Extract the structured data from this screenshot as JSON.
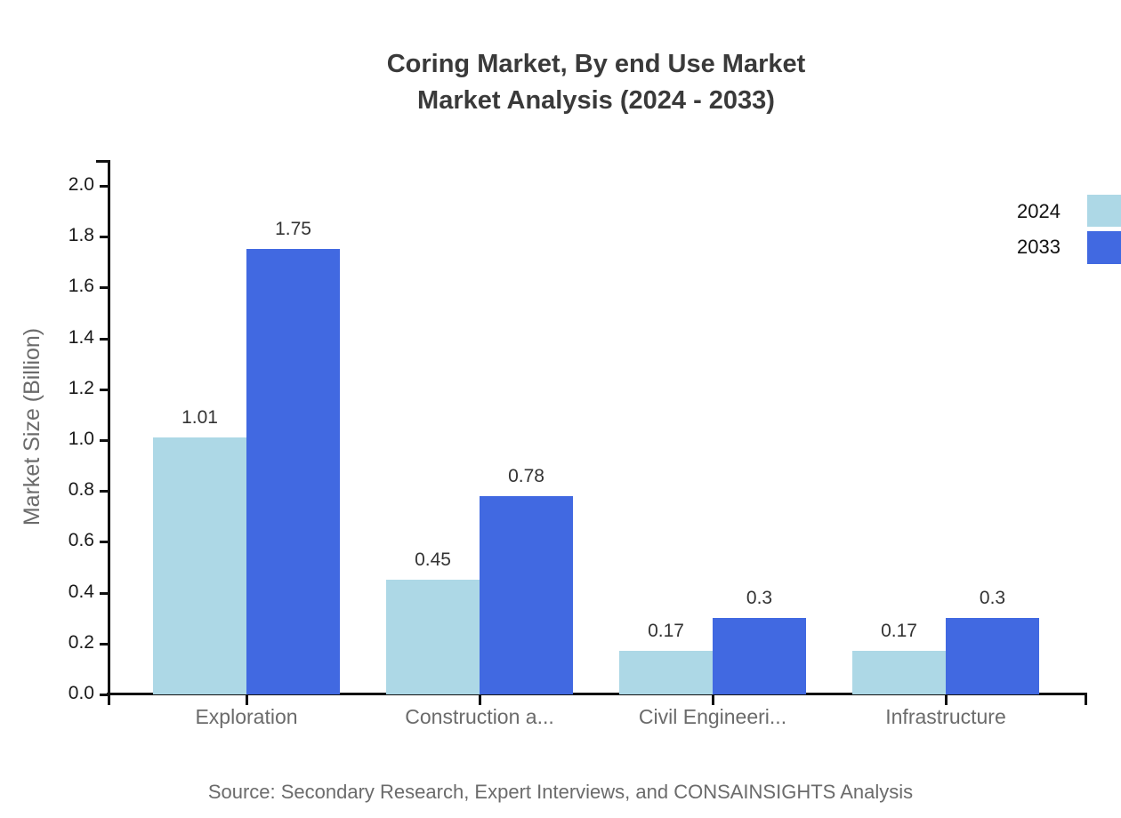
{
  "title": {
    "line1": "Coring Market, By end Use Market",
    "line2": "Market Analysis (2024 - 2033)"
  },
  "source": "Source: Secondary Research, Expert Interviews, and CONSAINSIGHTS Analysis",
  "colors": {
    "series_2024": "#ADD8E6",
    "series_2033": "#4169E1",
    "axis": "#111111",
    "text_dark": "#333333",
    "text_gray": "#6b6b6b",
    "background": "#ffffff"
  },
  "chart_data": {
    "type": "bar",
    "title": "Coring Market, By end Use Market Market Analysis (2024 - 2033)",
    "categories": [
      "Exploration",
      "Construction a...",
      "Civil Engineeri...",
      "Infrastructure"
    ],
    "series": [
      {
        "name": "2024",
        "color": "#ADD8E6",
        "values": [
          1.01,
          0.45,
          0.17,
          0.17
        ]
      },
      {
        "name": "2033",
        "color": "#4169E1",
        "values": [
          1.75,
          0.78,
          0.3,
          0.3
        ]
      }
    ],
    "value_labels": [
      [
        "1.01",
        "0.45",
        "0.17",
        "0.17"
      ],
      [
        "1.75",
        "0.78",
        "0.3",
        "0.3"
      ]
    ],
    "xlabel": "",
    "ylabel": "Market Size (Billion)",
    "ylim": [
      0.0,
      2.0
    ],
    "yticks": [
      "0.0",
      "0.2",
      "0.4",
      "0.6",
      "0.8",
      "1.0",
      "1.2",
      "1.4",
      "1.6",
      "1.8",
      "2.0"
    ],
    "grid": false,
    "legend_position": "top-right",
    "bar_group_gap": 0.2
  }
}
